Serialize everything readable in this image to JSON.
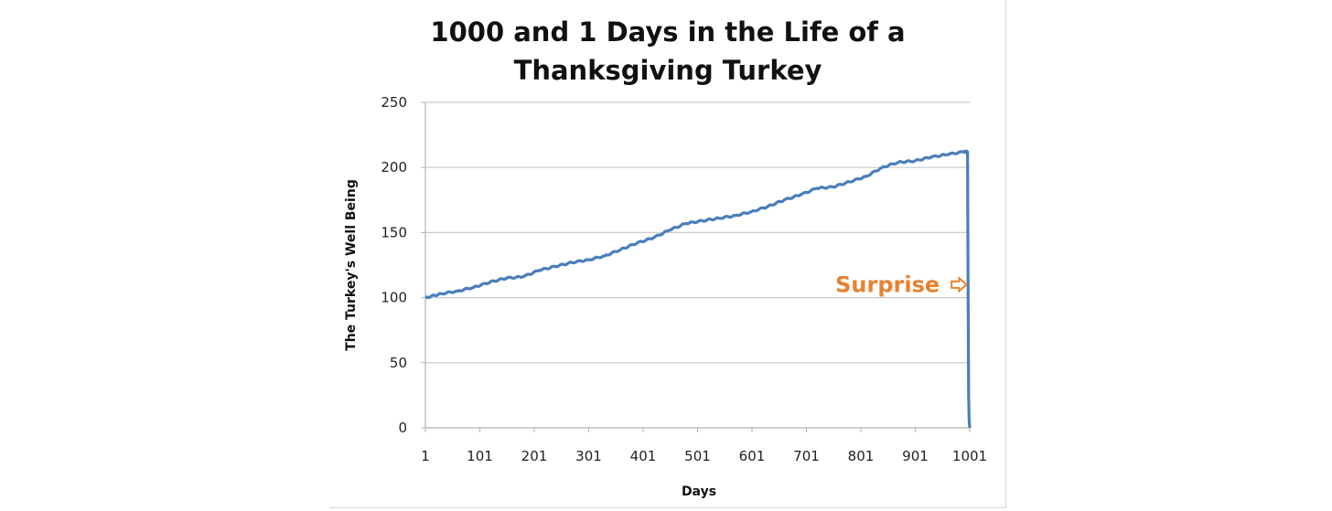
{
  "chart_data": {
    "type": "line",
    "title_lines": [
      "1000 and 1 Days in the Life of a",
      "Thanksgiving Turkey"
    ],
    "xlabel": "Days",
    "ylabel": "The Turkey's Well Being",
    "xlim": [
      1,
      1001
    ],
    "ylim": [
      0,
      250
    ],
    "x_ticks": [
      1,
      101,
      201,
      301,
      401,
      501,
      601,
      701,
      801,
      901,
      1001
    ],
    "x_tick_labels": [
      "1",
      "101",
      "201",
      "301",
      "401",
      "501",
      "601",
      "701",
      "801",
      "901",
      "1001"
    ],
    "y_ticks": [
      0,
      50,
      100,
      150,
      200,
      250
    ],
    "y_tick_labels": [
      "0",
      "50",
      "100",
      "150",
      "200",
      "250"
    ],
    "grid": "horizontal",
    "legend": "none",
    "series": [
      {
        "color": "#4a7ebb",
        "x": [
          1,
          30,
          60,
          90,
          120,
          150,
          180,
          210,
          240,
          270,
          300,
          330,
          360,
          390,
          420,
          450,
          480,
          510,
          540,
          570,
          600,
          630,
          660,
          690,
          720,
          750,
          780,
          810,
          840,
          870,
          900,
          930,
          960,
          990,
          997,
          998,
          999,
          1000,
          1001
        ],
        "y": [
          100,
          103,
          105,
          108,
          112,
          115,
          116,
          121,
          124,
          127,
          129,
          132,
          137,
          142,
          146,
          152,
          157,
          159,
          161,
          163,
          166,
          170,
          175,
          179,
          184,
          185,
          189,
          193,
          200,
          204,
          205,
          208,
          210,
          212,
          212,
          110,
          25,
          5,
          0
        ]
      }
    ],
    "annotations": [
      {
        "text": "Surprise",
        "color": "#e8822f",
        "x": 850,
        "y": 110,
        "arrow_to": [
          995,
          110
        ]
      }
    ]
  }
}
